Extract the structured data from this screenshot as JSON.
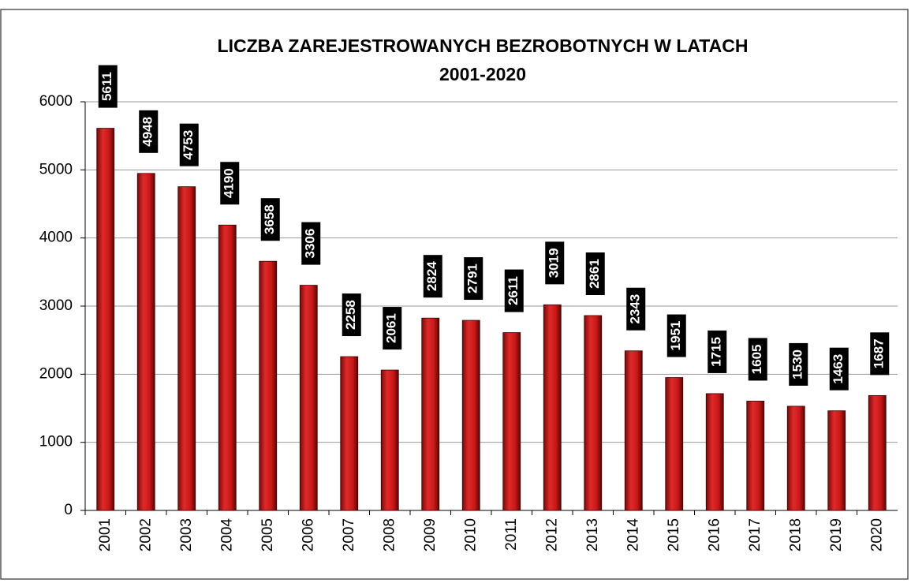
{
  "chart_data": {
    "type": "bar",
    "title": "LICZBA ZAREJESTROWANYCH BEZROBOTNYCH W LATACH",
    "subtitle": "2001-2020",
    "categories": [
      "2001",
      "2002",
      "2003",
      "2004",
      "2005",
      "2006",
      "2007",
      "2008",
      "2009",
      "2010",
      "2011",
      "2012",
      "2013",
      "2014",
      "2015",
      "2016",
      "2017",
      "2018",
      "2019",
      "2020"
    ],
    "values": [
      5611,
      4948,
      4753,
      4190,
      3658,
      3306,
      2258,
      2061,
      2824,
      2791,
      2611,
      3019,
      2861,
      2343,
      1951,
      1715,
      1605,
      1530,
      1463,
      1687
    ],
    "color": "#d42020",
    "ylim": [
      0,
      6000
    ],
    "yticks": [
      0,
      1000,
      2000,
      3000,
      4000,
      5000,
      6000
    ],
    "grid": true
  }
}
